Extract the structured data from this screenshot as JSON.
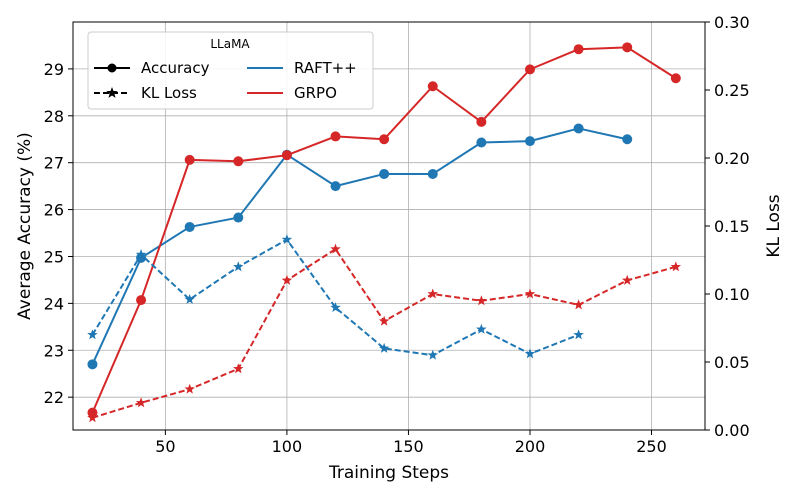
{
  "chart_data": {
    "type": "line",
    "title": "",
    "xlabel": "Training Steps",
    "ylabel": "Average Accuracy (%)",
    "y2label": "KL Loss",
    "xlim": [
      12,
      272
    ],
    "ylim": [
      21.3,
      30.0
    ],
    "y2lim": [
      0.0,
      0.3
    ],
    "xticks": [
      50,
      100,
      150,
      200,
      250
    ],
    "yticks": [
      22,
      23,
      24,
      25,
      26,
      27,
      28,
      29
    ],
    "y2ticks": [
      "0.00",
      "0.05",
      "0.10",
      "0.15",
      "0.20",
      "0.25",
      "0.30"
    ],
    "grid": true,
    "legend": {
      "title": "LLaMA",
      "placement": "top-left",
      "entries": [
        {
          "label": "Accuracy",
          "style": "solid-circle"
        },
        {
          "label": "KL Loss",
          "style": "dashed-star"
        },
        {
          "label": "RAFT++",
          "color": "#1f77b4"
        },
        {
          "label": "GRPO",
          "color": "#d62728"
        }
      ]
    },
    "series": [
      {
        "name": "RAFT++ Accuracy",
        "method": "RAFT++",
        "metric": "Accuracy",
        "axis": "left",
        "color": "#1f77b4",
        "linestyle": "solid",
        "marker": "circle",
        "x": [
          20,
          40,
          60,
          80,
          100,
          120,
          140,
          160,
          180,
          200,
          220,
          240
        ],
        "values": [
          22.7,
          24.97,
          25.63,
          25.83,
          27.17,
          26.5,
          26.76,
          26.76,
          27.43,
          27.46,
          27.73,
          27.5
        ]
      },
      {
        "name": "GRPO Accuracy",
        "method": "GRPO",
        "metric": "Accuracy",
        "axis": "left",
        "color": "#d62728",
        "linestyle": "solid",
        "marker": "circle",
        "x": [
          20,
          40,
          60,
          80,
          100,
          120,
          140,
          160,
          180,
          200,
          220,
          240,
          260
        ],
        "values": [
          21.67,
          24.07,
          27.06,
          27.03,
          27.16,
          27.56,
          27.5,
          28.63,
          27.87,
          28.99,
          29.42,
          29.46,
          28.8
        ]
      },
      {
        "name": "RAFT++ KL Loss",
        "method": "RAFT++",
        "metric": "KL Loss",
        "axis": "right",
        "color": "#1f77b4",
        "linestyle": "dashed",
        "marker": "star",
        "x": [
          20,
          40,
          60,
          80,
          100,
          120,
          140,
          160,
          180,
          200,
          220
        ],
        "values": [
          0.07,
          0.129,
          0.096,
          0.12,
          0.14,
          0.09,
          0.06,
          0.055,
          0.074,
          0.056,
          0.07
        ]
      },
      {
        "name": "GRPO KL Loss",
        "method": "GRPO",
        "metric": "KL Loss",
        "axis": "right",
        "color": "#d62728",
        "linestyle": "dashed",
        "marker": "star",
        "x": [
          20,
          40,
          60,
          80,
          100,
          120,
          140,
          160,
          180,
          200,
          220,
          240,
          260
        ],
        "values": [
          0.009,
          0.02,
          0.03,
          0.045,
          0.11,
          0.133,
          0.08,
          0.1,
          0.095,
          0.1,
          0.092,
          0.11,
          0.12
        ]
      }
    ]
  }
}
